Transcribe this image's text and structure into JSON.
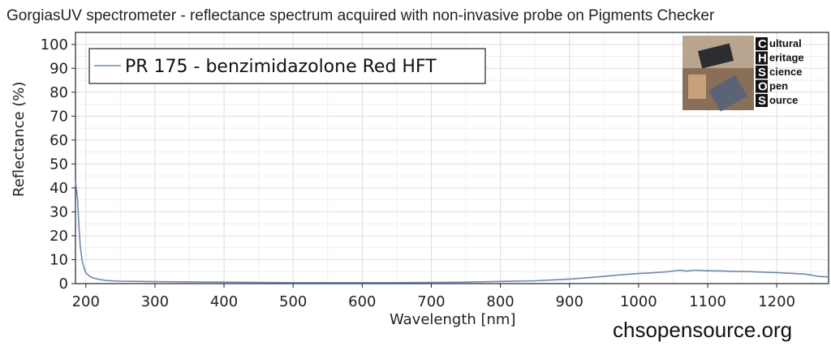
{
  "chart_data": {
    "type": "line",
    "title": "GorgiasUV spectrometer - reflectance spectrum acquired with non-invasive probe on Pigments Checker",
    "xlabel": "Wavelength [nm]",
    "ylabel": "Reflectance (%)",
    "xlim": [
      185,
      1275
    ],
    "ylim": [
      0,
      105
    ],
    "xticks": [
      200,
      300,
      400,
      500,
      600,
      700,
      800,
      900,
      1000,
      1100,
      1200
    ],
    "yticks": [
      0,
      10,
      20,
      30,
      40,
      50,
      60,
      70,
      80,
      90,
      100
    ],
    "grid": true,
    "legend_position": "top-left",
    "series": [
      {
        "name": "PR 175 - benzimidazolone Red HFT",
        "color": "#6f86b0",
        "x": [
          185,
          188,
          190,
          192,
          195,
          198,
          200,
          205,
          210,
          220,
          230,
          250,
          280,
          300,
          350,
          400,
          450,
          500,
          550,
          600,
          650,
          700,
          750,
          800,
          850,
          880,
          900,
          920,
          950,
          970,
          1000,
          1020,
          1040,
          1060,
          1070,
          1080,
          1100,
          1120,
          1140,
          1160,
          1180,
          1200,
          1220,
          1240,
          1250,
          1260,
          1275
        ],
        "y": [
          43,
          35,
          24,
          15,
          9,
          6,
          4.5,
          3.2,
          2.4,
          1.7,
          1.3,
          1.0,
          0.9,
          0.8,
          0.7,
          0.6,
          0.5,
          0.4,
          0.4,
          0.4,
          0.4,
          0.5,
          0.6,
          0.9,
          1.2,
          1.6,
          1.9,
          2.3,
          3.0,
          3.6,
          4.2,
          4.5,
          4.9,
          5.6,
          5.2,
          5.6,
          5.4,
          5.3,
          5.1,
          5.0,
          4.8,
          4.6,
          4.3,
          4.0,
          3.6,
          3.0,
          2.8
        ]
      }
    ]
  },
  "logo": {
    "letters": [
      "C",
      "H",
      "S",
      "O",
      "S"
    ],
    "words": [
      "ultural",
      "eritage",
      "cience",
      "pen",
      "ource"
    ]
  },
  "website": "chsopensource.org"
}
